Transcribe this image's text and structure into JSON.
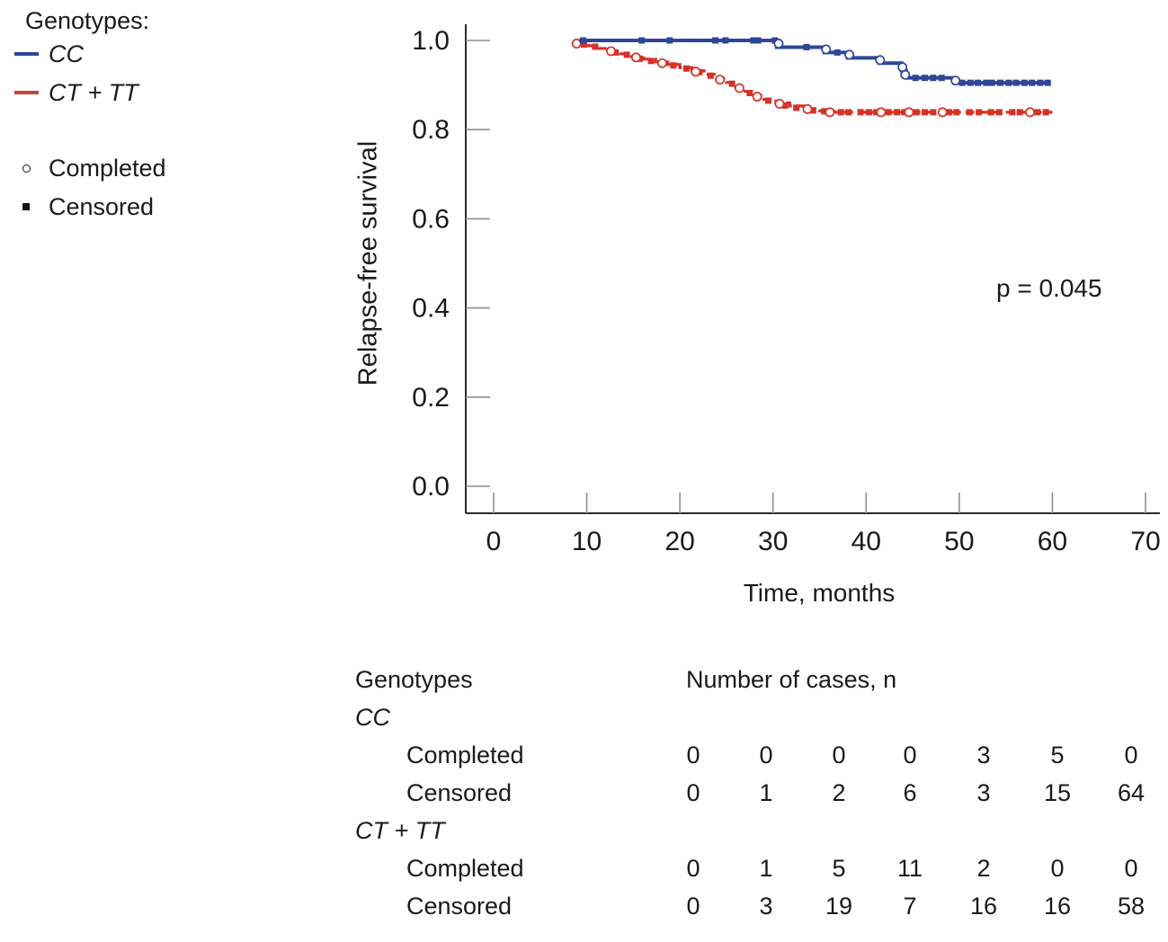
{
  "colors": {
    "cc_line": "#2e4696",
    "cttt_line": "#d53227",
    "axis": "#2b2b2b",
    "tick": "#8f8f8f",
    "text": "#1a1a1a"
  },
  "legend": {
    "title": "Genotypes:",
    "series": [
      {
        "label": "CC",
        "color": "#2e4696"
      },
      {
        "label": "CT + TT",
        "color": "#c4463c"
      }
    ],
    "markers": [
      {
        "label": "Completed",
        "type": "open-circle"
      },
      {
        "label": "Censored",
        "type": "filled-square"
      }
    ]
  },
  "chart_data": {
    "type": "line",
    "subtype": "kaplan-meier-step",
    "title": "",
    "xlabel": "Time, months",
    "ylabel": "Relapse-free survival",
    "xlim": [
      0,
      70
    ],
    "ylim": [
      0.0,
      1.0
    ],
    "x_tick_values": [
      0,
      10,
      20,
      30,
      40,
      50,
      60,
      70
    ],
    "x_tick_labels": [
      "0",
      "10",
      "20",
      "30",
      "40",
      "50",
      "60",
      "70"
    ],
    "y_tick_values": [
      0.0,
      0.2,
      0.4,
      0.6,
      0.8,
      1.0
    ],
    "y_tick_labels": [
      "0.0",
      "0.2",
      "0.4",
      "0.6",
      "0.8",
      "1.0"
    ],
    "grid": false,
    "legend_position": "outside-top-left",
    "annotation": {
      "text": "p = 0.045"
    },
    "series": [
      {
        "name": "CT + TT",
        "color": "#d53227",
        "line_style": "dashed",
        "steps": [
          [
            8.8,
            0.993
          ],
          [
            10.2,
            0.988
          ],
          [
            11.2,
            0.982
          ],
          [
            12.3,
            0.976
          ],
          [
            13.6,
            0.97
          ],
          [
            14.8,
            0.964
          ],
          [
            16.1,
            0.958
          ],
          [
            17.4,
            0.952
          ],
          [
            18.7,
            0.946
          ],
          [
            20.0,
            0.939
          ],
          [
            21.3,
            0.932
          ],
          [
            22.6,
            0.924
          ],
          [
            23.9,
            0.915
          ],
          [
            25.0,
            0.906
          ],
          [
            26.0,
            0.896
          ],
          [
            27.0,
            0.886
          ],
          [
            28.0,
            0.877
          ],
          [
            29.0,
            0.868
          ],
          [
            30.3,
            0.86
          ],
          [
            31.8,
            0.853
          ],
          [
            33.3,
            0.847
          ],
          [
            34.8,
            0.842
          ],
          [
            36.5,
            0.839
          ],
          [
            60.0,
            0.839
          ]
        ],
        "completed_markers": [
          [
            8.9,
            0.993
          ],
          [
            12.6,
            0.976
          ],
          [
            15.3,
            0.962
          ],
          [
            18.1,
            0.949
          ],
          [
            21.7,
            0.93
          ],
          [
            24.3,
            0.912
          ],
          [
            26.4,
            0.893
          ],
          [
            28.3,
            0.874
          ],
          [
            30.7,
            0.858
          ],
          [
            33.7,
            0.846
          ],
          [
            36.1,
            0.839
          ],
          [
            41.6,
            0.839
          ],
          [
            44.6,
            0.839
          ],
          [
            48.2,
            0.839
          ],
          [
            57.6,
            0.839
          ]
        ],
        "censored_markers": [
          [
            9.7,
            0.991
          ],
          [
            10.9,
            0.986
          ],
          [
            13.1,
            0.973
          ],
          [
            14.3,
            0.968
          ],
          [
            15.7,
            0.959
          ],
          [
            16.9,
            0.954
          ],
          [
            19.3,
            0.944
          ],
          [
            20.7,
            0.937
          ],
          [
            22.1,
            0.929
          ],
          [
            23.3,
            0.921
          ],
          [
            25.6,
            0.903
          ],
          [
            27.5,
            0.882
          ],
          [
            29.5,
            0.865
          ],
          [
            31.3,
            0.854
          ],
          [
            32.5,
            0.849
          ],
          [
            34.3,
            0.843
          ],
          [
            35.5,
            0.841
          ],
          [
            37.3,
            0.839
          ],
          [
            38.1,
            0.839
          ],
          [
            39.4,
            0.839
          ],
          [
            40.3,
            0.839
          ],
          [
            41.1,
            0.839
          ],
          [
            42.4,
            0.839
          ],
          [
            43.3,
            0.839
          ],
          [
            44.1,
            0.839
          ],
          [
            45.4,
            0.839
          ],
          [
            46.3,
            0.839
          ],
          [
            47.2,
            0.839
          ],
          [
            48.9,
            0.839
          ],
          [
            49.7,
            0.839
          ],
          [
            51.1,
            0.839
          ],
          [
            52.1,
            0.839
          ],
          [
            53.4,
            0.839
          ],
          [
            54.3,
            0.839
          ],
          [
            55.7,
            0.839
          ],
          [
            56.5,
            0.839
          ],
          [
            58.4,
            0.839
          ],
          [
            59.3,
            0.839
          ]
        ]
      },
      {
        "name": "CC",
        "color": "#2e4696",
        "line_style": "solid",
        "steps": [
          [
            9.2,
            1.0
          ],
          [
            30.4,
            0.985
          ],
          [
            35.5,
            0.973
          ],
          [
            38.0,
            0.961
          ],
          [
            41.4,
            0.949
          ],
          [
            43.8,
            0.932
          ],
          [
            44.3,
            0.916
          ],
          [
            49.4,
            0.905
          ],
          [
            59.8,
            0.905
          ]
        ],
        "completed_markers": [
          [
            30.6,
            0.993
          ],
          [
            35.7,
            0.98
          ],
          [
            38.2,
            0.968
          ],
          [
            41.5,
            0.956
          ],
          [
            43.9,
            0.94
          ],
          [
            44.2,
            0.923
          ],
          [
            49.6,
            0.91
          ]
        ],
        "censored_markers": [
          [
            9.6,
            1.0
          ],
          [
            15.9,
            1.0
          ],
          [
            18.9,
            1.0
          ],
          [
            23.8,
            1.0
          ],
          [
            24.9,
            1.0
          ],
          [
            27.9,
            1.0
          ],
          [
            28.4,
            1.0
          ],
          [
            30.2,
            1.0
          ],
          [
            33.6,
            0.985
          ],
          [
            36.9,
            0.973
          ],
          [
            45.3,
            0.916
          ],
          [
            46.3,
            0.916
          ],
          [
            47.2,
            0.916
          ],
          [
            48.1,
            0.916
          ],
          [
            50.3,
            0.905
          ],
          [
            51.2,
            0.905
          ],
          [
            52.0,
            0.905
          ],
          [
            52.9,
            0.905
          ],
          [
            53.5,
            0.905
          ],
          [
            54.4,
            0.905
          ],
          [
            55.3,
            0.905
          ],
          [
            56.1,
            0.905
          ],
          [
            57.0,
            0.905
          ],
          [
            57.8,
            0.905
          ],
          [
            58.7,
            0.905
          ],
          [
            59.5,
            0.905
          ]
        ]
      }
    ]
  },
  "table": {
    "header": {
      "col1": "Genotypes",
      "col2": "Number of cases, n"
    },
    "groups": [
      {
        "name": "CC",
        "rows": [
          {
            "label": "Completed",
            "values": [
              0,
              0,
              0,
              0,
              3,
              5,
              0
            ]
          },
          {
            "label": "Censored",
            "values": [
              0,
              1,
              2,
              6,
              3,
              15,
              64
            ]
          }
        ]
      },
      {
        "name": "CT + TT",
        "rows": [
          {
            "label": "Completed",
            "values": [
              0,
              1,
              5,
              11,
              2,
              0,
              0
            ]
          },
          {
            "label": "Censored",
            "values": [
              0,
              3,
              19,
              7,
              16,
              16,
              58
            ]
          }
        ]
      }
    ]
  }
}
